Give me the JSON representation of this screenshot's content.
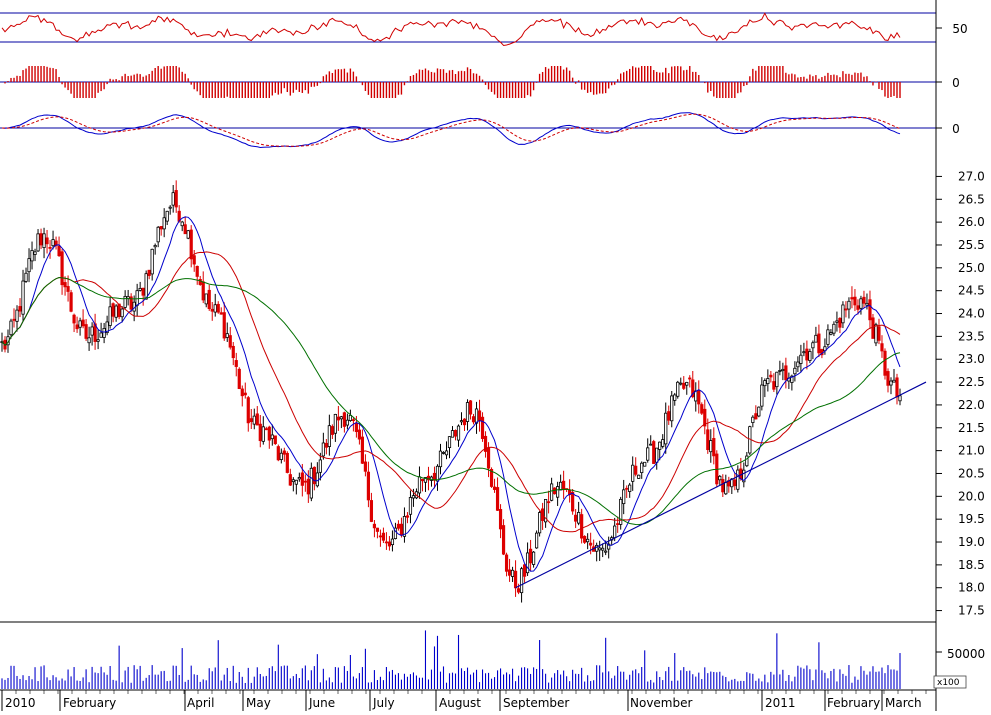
{
  "chart_data": [
    {
      "panel": "rsi",
      "type": "line",
      "ylim": [
        0,
        100
      ],
      "ref_lines": [
        30,
        70
      ],
      "tick_labels": [
        "50"
      ],
      "colors": {
        "series": "#d00000",
        "ref": "#0000a0"
      }
    },
    {
      "panel": "histogram",
      "type": "bar",
      "tick_labels": [
        "0"
      ],
      "colors": {
        "bars": "#d00000",
        "zero": "#0000a0"
      }
    },
    {
      "panel": "macd",
      "type": "line",
      "tick_labels": [
        "0"
      ],
      "colors": {
        "macd": "#0000cc",
        "signal": "#d00000",
        "zero": "#0000a0"
      }
    },
    {
      "panel": "price",
      "type": "candlestick",
      "ylim": [
        17.25,
        27.25
      ],
      "y_ticks": [
        "17.5",
        "18.0",
        "18.5",
        "19.0",
        "19.5",
        "20.0",
        "20.5",
        "21.0",
        "21.5",
        "22.0",
        "22.5",
        "23.0",
        "23.5",
        "24.0",
        "24.5",
        "25.0",
        "25.5",
        "26.0",
        "26.5",
        "27.0"
      ],
      "key_points": [
        {
          "label": "Jan-2010",
          "value": 23.3
        },
        {
          "label": "Jan-2010 high",
          "value": 25.7
        },
        {
          "label": "Feb-2010",
          "value": 23.5
        },
        {
          "label": "Mar-2010",
          "value": 24.2
        },
        {
          "label": "Apr-2010 high",
          "value": 26.4
        },
        {
          "label": "May-2010",
          "value": 24.0
        },
        {
          "label": "May-2010 low",
          "value": 21.5
        },
        {
          "label": "Jun-2010 low",
          "value": 20.2
        },
        {
          "label": "Jun-2010",
          "value": 21.8
        },
        {
          "label": "Jul-2010 low",
          "value": 18.9
        },
        {
          "label": "Jul-2010",
          "value": 20.5
        },
        {
          "label": "Aug-2010 high",
          "value": 21.9
        },
        {
          "label": "Aug-2010 low",
          "value": 18.1
        },
        {
          "label": "Sep-2010",
          "value": 20.2
        },
        {
          "label": "Sep-2010 low",
          "value": 18.8
        },
        {
          "label": "Oct-2010",
          "value": 20.8
        },
        {
          "label": "Oct-2010 high",
          "value": 22.4
        },
        {
          "label": "Nov-2010 low",
          "value": 20.1
        },
        {
          "label": "Dec-2010",
          "value": 22.5
        },
        {
          "label": "Jan-2011",
          "value": 23.3
        },
        {
          "label": "Feb-2011 high",
          "value": 24.3
        },
        {
          "label": "Mar-2011",
          "value": 22.2
        }
      ],
      "moving_averages": [
        {
          "color": "#0000cc"
        },
        {
          "color": "#cc0000"
        },
        {
          "color": "#007000"
        }
      ],
      "trendline": {
        "from": 18.0,
        "to": 22.5,
        "color": "#0000a0"
      },
      "colors": {
        "up": "#000000",
        "down": "#dd0000"
      }
    },
    {
      "panel": "volume",
      "type": "bar",
      "tick_labels": [
        "50000"
      ],
      "unit_label": "x100",
      "colors": {
        "bars": "#0000cc"
      }
    }
  ],
  "x_axis": {
    "labels": [
      "2010",
      "February",
      "April",
      "May",
      "June",
      "July",
      "August",
      "September",
      "November",
      "2011",
      "February",
      "March"
    ]
  }
}
